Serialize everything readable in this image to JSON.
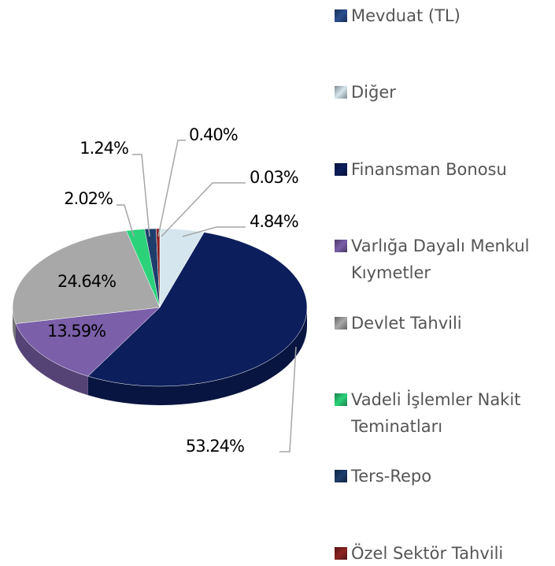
{
  "chart_data": {
    "type": "pie",
    "categories": [
      "Mevduat (TL)",
      "Diğer",
      "Finansman Bonosu",
      "Varlığa Dayalı Menkul Kıymetler",
      "Devlet Tahvili",
      "Vadeli İşlemler Nakit Teminatları",
      "Ters-Repo",
      "Özel Sektör Tahvili"
    ],
    "values": [
      0.03,
      4.84,
      53.24,
      13.59,
      24.64,
      2.02,
      1.24,
      0.4
    ],
    "value_labels": [
      "0.03%",
      "4.84%",
      "53.24%",
      "13.59%",
      "24.64%",
      "2.02%",
      "1.24%",
      "0.40%"
    ],
    "colors": [
      "#2b4f8f",
      "#d6e6ee",
      "#0c1e5b",
      "#7b5fa9",
      "#a8a8a8",
      "#2bd27a",
      "#1e3d6b",
      "#8c2222"
    ],
    "legend": "right"
  }
}
